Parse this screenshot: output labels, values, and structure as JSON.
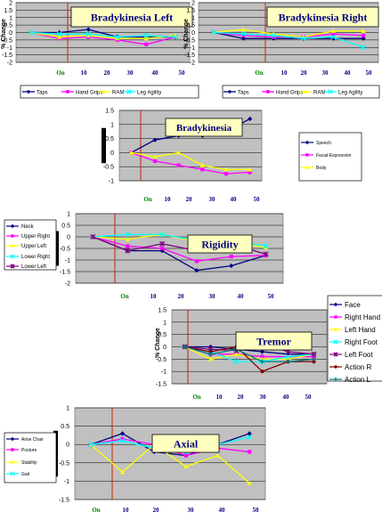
{
  "colors": {
    "plot_bg": "#c0c0c0",
    "title_bg": "#ffffc0",
    "title_text": "#000080",
    "onset_line": "#cc2200",
    "x_tick_text": "#000080",
    "on_text": "#008000"
  },
  "chart_data": [
    {
      "type": "line",
      "title": "Bradykinesia Left",
      "xlabel": "",
      "ylabel": "% Change",
      "x": [
        "On",
        "10",
        "20",
        "30",
        "40",
        "50"
      ],
      "ylim": [
        -2,
        2
      ],
      "yticks": [
        "2",
        "1.5",
        "1",
        "0.5",
        "0",
        "-0.5",
        "-1",
        "-1.5",
        "-2"
      ],
      "grid": true,
      "legend": "bottom",
      "series": [
        {
          "name": "Taps",
          "color": "#000080",
          "marker": "diamond",
          "values": [
            0,
            0,
            0.2,
            -0.3,
            -0.3,
            -0.3
          ]
        },
        {
          "name": "Hand Grips",
          "color": "#ff00ff",
          "marker": "square",
          "values": [
            0,
            -0.4,
            -0.3,
            -0.5,
            -0.8,
            -0.3
          ]
        },
        {
          "name": "RAM",
          "color": "#ffff00",
          "marker": "triangle",
          "values": [
            0,
            -0.3,
            -0.2,
            -0.4,
            -0.4,
            -0.2
          ]
        },
        {
          "name": "Leg Agility",
          "color": "#00ffff",
          "marker": "x",
          "values": [
            0,
            -0.1,
            -0.1,
            -0.3,
            -0.2,
            -0.3
          ]
        }
      ]
    },
    {
      "type": "line",
      "title": "Bradykinesia Right",
      "xlabel": "",
      "ylabel": "% Change",
      "x": [
        "On",
        "10",
        "20",
        "30",
        "40",
        "50"
      ],
      "ylim": [
        -2,
        2
      ],
      "yticks": [
        "2",
        "1.5",
        "1",
        "0.5",
        "0",
        "-0.5",
        "-1",
        "-1.5",
        "-2"
      ],
      "grid": true,
      "legend": "bottom",
      "series": [
        {
          "name": "Taps",
          "color": "#000080",
          "marker": "diamond",
          "values": [
            0,
            -0.4,
            -0.4,
            -0.4,
            -0.4,
            -0.4
          ]
        },
        {
          "name": "Hand Grips",
          "color": "#ff00ff",
          "marker": "square",
          "values": [
            0,
            -0.2,
            -0.3,
            -0.3,
            -0.1,
            -0.2
          ]
        },
        {
          "name": "RAM",
          "color": "#ffff00",
          "marker": "triangle",
          "values": [
            0,
            0.2,
            -0.1,
            -0.3,
            0.1,
            0.1
          ]
        },
        {
          "name": "Leg Agility",
          "color": "#00ffff",
          "marker": "x",
          "values": [
            0,
            -0.1,
            -0.2,
            -0.4,
            -0.3,
            -1.0
          ]
        }
      ]
    },
    {
      "type": "line",
      "title": "Bradykinesia",
      "xlabel": "",
      "ylabel": "",
      "x": [
        "On",
        "10",
        "20",
        "30",
        "40",
        "50"
      ],
      "ylim": [
        -1,
        1.5
      ],
      "yticks": [
        "1.5",
        "1",
        "0.5",
        "0",
        "-0.5",
        "-1"
      ],
      "grid": true,
      "legend": "right",
      "series": [
        {
          "name": "Speech",
          "color": "#000080",
          "marker": "diamond",
          "values": [
            0,
            0.45,
            0.6,
            0.6,
            0.75,
            1.2
          ]
        },
        {
          "name": "Facial Expression",
          "color": "#ff00ff",
          "marker": "square",
          "values": [
            0,
            -0.3,
            -0.45,
            -0.6,
            -0.75,
            -0.7
          ]
        },
        {
          "name": "Body",
          "color": "#ffff00",
          "marker": "triangle",
          "values": [
            0,
            -0.15,
            0.0,
            -0.45,
            -0.6,
            -0.6
          ]
        }
      ]
    },
    {
      "type": "line",
      "title": "Rigidity",
      "xlabel": "",
      "ylabel": "",
      "x": [
        "On",
        "10",
        "20",
        "30",
        "40",
        "50"
      ],
      "ylim": [
        -2,
        1
      ],
      "yticks": [
        "1",
        "0.5",
        "0",
        "-0.5",
        "-1",
        "-1.5",
        "-2"
      ],
      "grid": true,
      "legend": "left",
      "series": [
        {
          "name": "Neck",
          "color": "#000080",
          "marker": "diamond",
          "values": [
            0,
            -0.6,
            -0.6,
            -1.45,
            -1.25,
            -0.8
          ]
        },
        {
          "name": "Upper Right",
          "color": "#ff00ff",
          "marker": "square",
          "values": [
            0,
            -0.4,
            -0.5,
            -1.05,
            -0.85,
            -0.8
          ]
        },
        {
          "name": "Upper Left",
          "color": "#ffff00",
          "marker": "triangle",
          "values": [
            0,
            -0.1,
            0.1,
            -0.2,
            -0.25,
            -0.45
          ]
        },
        {
          "name": "Lower Right",
          "color": "#00ffff",
          "marker": "x",
          "values": [
            0,
            0.1,
            0.1,
            -0.15,
            -0.2,
            -0.4
          ]
        },
        {
          "name": "Lower Left",
          "color": "#800080",
          "marker": "star",
          "values": [
            0,
            -0.6,
            -0.3,
            -0.6,
            -0.3,
            -0.75
          ]
        }
      ]
    },
    {
      "type": "line",
      "title": "Tremor",
      "xlabel": "",
      "ylabel": "% Change",
      "x": [
        "On",
        "10",
        "20",
        "30",
        "40",
        "50"
      ],
      "ylim": [
        -1.5,
        1.5
      ],
      "yticks": [
        "1.5",
        "1",
        "0.5",
        "0",
        "-0.5",
        "-1",
        "-1.5"
      ],
      "grid": true,
      "legend": "right",
      "series": [
        {
          "name": "Face",
          "color": "#000080",
          "marker": "diamond",
          "values": [
            0,
            0,
            -0.1,
            -0.2,
            -0.3,
            -0.3
          ]
        },
        {
          "name": "Right Hand",
          "color": "#ff00ff",
          "marker": "square",
          "values": [
            0,
            -0.3,
            -0.3,
            -0.4,
            -0.4,
            -0.4
          ]
        },
        {
          "name": "Left Hand",
          "color": "#ffff00",
          "marker": "triangle",
          "values": [
            0,
            -0.5,
            -0.3,
            -0.5,
            -0.5,
            -0.3
          ]
        },
        {
          "name": "Right Foot",
          "color": "#00ffff",
          "marker": "x",
          "values": [
            0,
            -0.2,
            -0.6,
            -0.6,
            -0.4,
            -0.3
          ]
        },
        {
          "name": "Left Foot",
          "color": "#800080",
          "marker": "star",
          "values": [
            0,
            -0.1,
            -0.15,
            0.15,
            -0.2,
            -0.3
          ]
        },
        {
          "name": "Action R",
          "color": "#800000",
          "marker": "circle",
          "values": [
            0,
            -0.2,
            0,
            -1.0,
            -0.6,
            -0.6
          ]
        },
        {
          "name": "Action L",
          "color": "#008080",
          "marker": "plus",
          "values": [
            0,
            -0.3,
            -0.1,
            -0.6,
            -0.6,
            -0.5
          ]
        }
      ]
    },
    {
      "type": "line",
      "title": "Axial",
      "xlabel": "",
      "ylabel": "",
      "x": [
        "On",
        "10",
        "20",
        "30",
        "40",
        "50"
      ],
      "ylim": [
        -1.5,
        1
      ],
      "yticks": [
        "1",
        "0.5",
        "0",
        "-0.5",
        "-1",
        "-1.5"
      ],
      "grid": true,
      "legend": "left",
      "series": [
        {
          "name": "Arise Chair",
          "color": "#000080",
          "marker": "diamond",
          "values": [
            0,
            0.3,
            -0.2,
            -0.3,
            0.0,
            0.3
          ]
        },
        {
          "name": "Posture",
          "color": "#ff00ff",
          "marker": "square",
          "values": [
            0,
            0.15,
            0.0,
            -0.3,
            -0.1,
            -0.2
          ]
        },
        {
          "name": "Stability",
          "color": "#ffff00",
          "marker": "triangle",
          "values": [
            0,
            -0.75,
            0.0,
            -0.6,
            -0.3,
            -1.05
          ]
        },
        {
          "name": "Gait",
          "color": "#00ffff",
          "marker": "x",
          "values": [
            0,
            0.1,
            -0.1,
            -0.2,
            0.0,
            0.2
          ]
        }
      ]
    }
  ]
}
